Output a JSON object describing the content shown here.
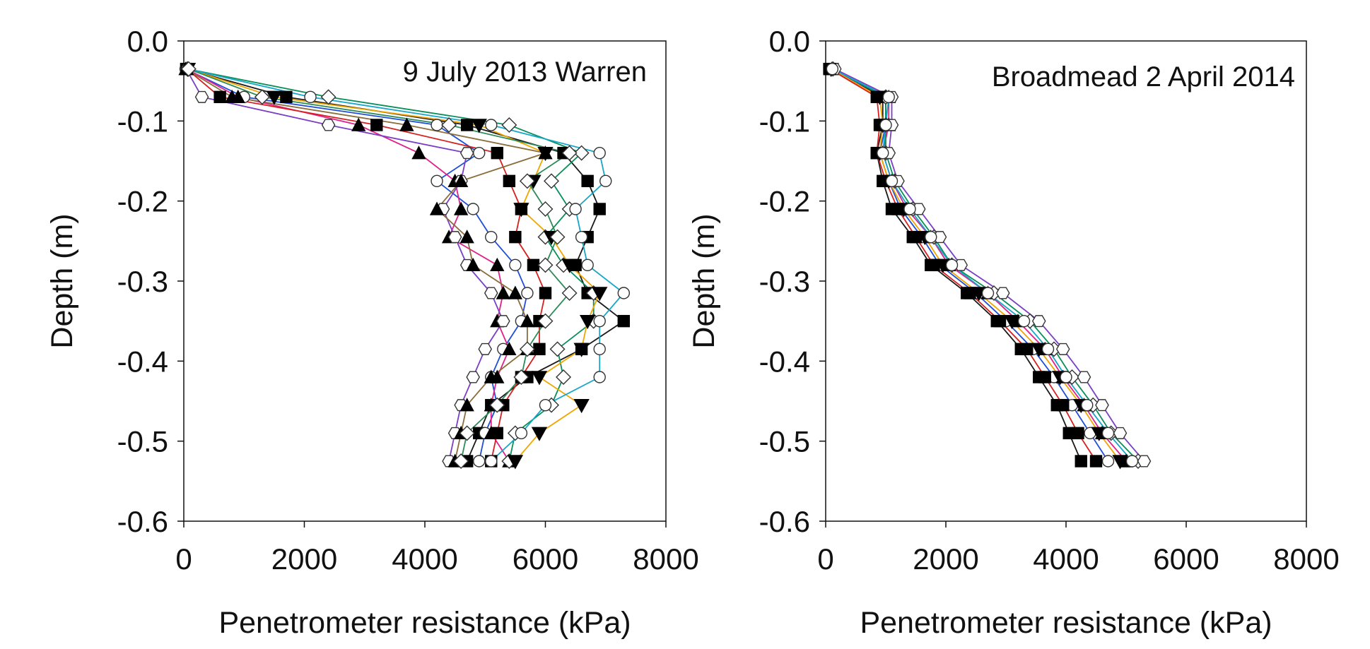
{
  "chart_data": [
    {
      "type": "line",
      "annotation": "9 July 2013 Warren",
      "xlabel": "Penetrometer resistance (kPa)",
      "ylabel": "Depth (m)",
      "xlim": [
        0,
        8000
      ],
      "ylim": [
        -0.6,
        0.0
      ],
      "xticks": [
        "0",
        "2000",
        "4000",
        "6000",
        "8000"
      ],
      "yticks": [
        "0.0",
        "-0.1",
        "-0.2",
        "-0.3",
        "-0.4",
        "-0.5",
        "-0.6"
      ],
      "grid": false,
      "legend": "none",
      "depths": [
        -0.035,
        -0.07,
        -0.105,
        -0.14,
        -0.175,
        -0.21,
        -0.245,
        -0.28,
        -0.315,
        -0.35,
        -0.385,
        -0.42,
        -0.455,
        -0.49,
        -0.525
      ],
      "series": [
        {
          "values": [
            40,
            1700,
            4700,
            6300,
            6700,
            6900,
            6700,
            6500,
            6700,
            7300,
            6600,
            5700,
            5100,
            4900,
            4700
          ]
        },
        {
          "values": [
            30,
            1000,
            4200,
            4900,
            4200,
            4800,
            5100,
            5500,
            5700,
            5600,
            5300,
            5100,
            5200,
            5000,
            4900
          ]
        },
        {
          "values": [
            50,
            900,
            2900,
            3900,
            4500,
            4600,
            4400,
            5200,
            5300,
            5200,
            5400,
            5200,
            5100,
            5100,
            5400
          ]
        },
        {
          "values": [
            60,
            2400,
            5400,
            6600,
            6100,
            6400,
            6000,
            6300,
            6800,
            6800,
            6200,
            6300,
            6100,
            5500,
            5400
          ]
        },
        {
          "values": [
            70,
            1500,
            4900,
            6000,
            5800,
            5600,
            6100,
            6400,
            6900,
            6700,
            6600,
            5900,
            6600,
            5900,
            5500
          ]
        },
        {
          "values": [
            40,
            300,
            2400,
            4700,
            4600,
            4300,
            4500,
            4700,
            5100,
            5300,
            5000,
            4800,
            4600,
            4500,
            4400
          ]
        },
        {
          "values": [
            50,
            600,
            3200,
            5200,
            5400,
            5600,
            5500,
            5800,
            6000,
            5900,
            5900,
            5600,
            5300,
            5200,
            5100
          ]
        },
        {
          "values": [
            60,
            2100,
            5100,
            6900,
            7000,
            6500,
            6600,
            6700,
            7300,
            6900,
            6900,
            6900,
            6000,
            5600,
            5100
          ]
        },
        {
          "values": [
            30,
            800,
            3700,
            6000,
            4600,
            4200,
            4700,
            4800,
            5500,
            5700,
            5700,
            5100,
            4700,
            4600,
            4500
          ]
        },
        {
          "values": [
            80,
            1300,
            4400,
            6400,
            5700,
            6000,
            6200,
            6000,
            6400,
            6000,
            5700,
            5600,
            5200,
            4700,
            4600
          ]
        }
      ]
    },
    {
      "type": "line",
      "annotation": "Broadmead 2 April 2014",
      "xlabel": "Penetrometer resistance (kPa)",
      "ylabel": "Depth (m)",
      "xlim": [
        0,
        8000
      ],
      "ylim": [
        -0.6,
        0.0
      ],
      "xticks": [
        "0",
        "2000",
        "4000",
        "6000",
        "8000"
      ],
      "yticks": [
        "0.0",
        "-0.1",
        "-0.2",
        "-0.3",
        "-0.4",
        "-0.5",
        "-0.6"
      ],
      "grid": false,
      "legend": "none",
      "depths": [
        -0.035,
        -0.07,
        -0.105,
        -0.14,
        -0.175,
        -0.21,
        -0.245,
        -0.28,
        -0.315,
        -0.35,
        -0.385,
        -0.42,
        -0.455,
        -0.49,
        -0.525
      ],
      "series": [
        {
          "values": [
            60,
            950,
            950,
            850,
            950,
            1100,
            1450,
            1750,
            2350,
            2850,
            3250,
            3550,
            3850,
            4050,
            4250
          ]
        },
        {
          "values": [
            80,
            1000,
            1000,
            900,
            1050,
            1250,
            1600,
            1900,
            2500,
            3000,
            3450,
            3800,
            4100,
            4400,
            4700
          ]
        },
        {
          "values": [
            100,
            1050,
            1050,
            950,
            1100,
            1350,
            1750,
            2050,
            2700,
            3200,
            3650,
            3950,
            4300,
            4600,
            5000
          ]
        },
        {
          "values": [
            120,
            1000,
            1000,
            1000,
            1150,
            1450,
            1800,
            2100,
            2800,
            3400,
            3800,
            4100,
            4450,
            4750,
            5200
          ]
        },
        {
          "values": [
            90,
            900,
            950,
            900,
            1050,
            1300,
            1650,
            1950,
            2550,
            3100,
            3550,
            3900,
            4250,
            4550,
            4900
          ]
        },
        {
          "values": [
            150,
            1100,
            1100,
            1050,
            1200,
            1550,
            1900,
            2250,
            2950,
            3550,
            3950,
            4300,
            4600,
            4900,
            5300
          ]
        },
        {
          "values": [
            70,
            850,
            900,
            850,
            1000,
            1200,
            1500,
            1800,
            2400,
            2900,
            3350,
            3650,
            3950,
            4200,
            4500
          ]
        },
        {
          "values": [
            110,
            1050,
            1000,
            950,
            1100,
            1400,
            1750,
            2100,
            2700,
            3300,
            3700,
            4000,
            4350,
            4700,
            5100
          ]
        }
      ]
    }
  ],
  "style": {
    "series_colors": [
      "#1a1a1a",
      "#1f4fd6",
      "#e0218a",
      "#0a8f5a",
      "#f0a500",
      "#7a3fc4",
      "#d62020",
      "#17a6c9",
      "#8a6d3b",
      "#2e8b57"
    ],
    "axis_color": "#111111",
    "marker_fill_dark": "#000000",
    "marker_fill_light": "#ffffff"
  }
}
